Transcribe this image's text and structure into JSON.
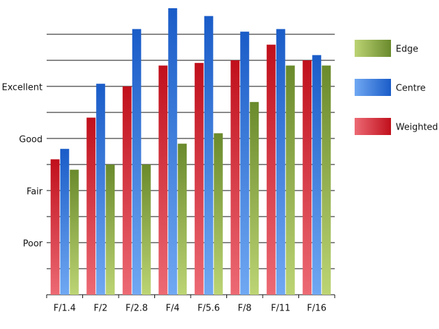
{
  "chart_data": {
    "type": "bar",
    "categories": [
      "F/1.4",
      "F/2",
      "F/2.8",
      "F/4",
      "F/5.6",
      "F/8",
      "F/11",
      "F/16"
    ],
    "series": [
      {
        "name": "Weighted",
        "color": "#c0101c",
        "light_color": "#ec6a74",
        "values": [
          5.2,
          6.8,
          8.0,
          8.8,
          8.9,
          9.0,
          9.6,
          9.0
        ]
      },
      {
        "name": "Centre",
        "color": "#1a5cc8",
        "light_color": "#70a8f2",
        "values": [
          5.6,
          8.1,
          10.2,
          11.0,
          10.7,
          10.1,
          10.2,
          9.2
        ]
      },
      {
        "name": "Edge",
        "color": "#6a8a2c",
        "light_color": "#bcd474",
        "values": [
          4.8,
          5.0,
          5.0,
          5.8,
          6.2,
          7.4,
          8.8,
          8.8
        ]
      }
    ],
    "ylim": [
      0,
      11.3
    ],
    "yticks": [
      {
        "value": 2,
        "label": "Poor"
      },
      {
        "value": 4,
        "label": "Fair"
      },
      {
        "value": 6,
        "label": "Good"
      },
      {
        "value": 8,
        "label": "Excellent"
      }
    ],
    "minor_yticks": [
      1,
      3,
      5,
      7,
      9,
      10
    ],
    "grid": true,
    "legend": "right"
  }
}
